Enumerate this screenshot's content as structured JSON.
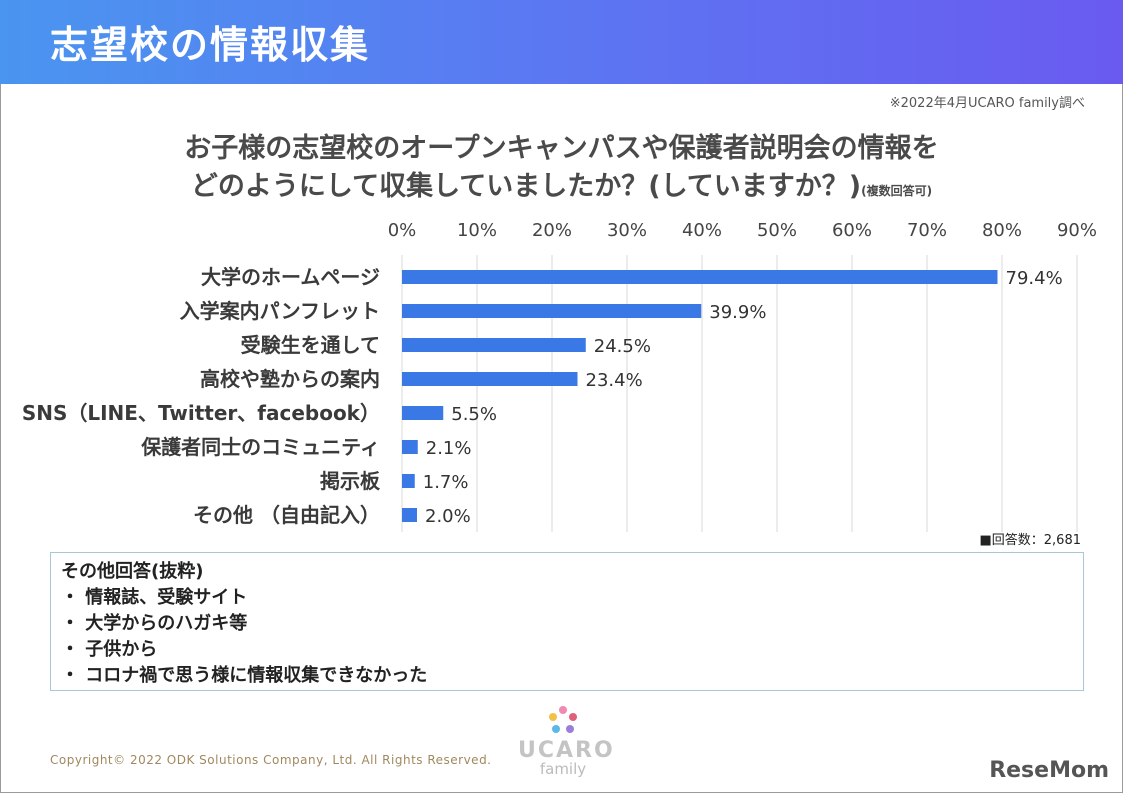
{
  "header": {
    "title": "志望校の情報収集"
  },
  "source_note": "※2022年4月UCARO family調べ",
  "question": {
    "line1": "お子様の志望校のオープンキャンパスや保護者説明会の情報を",
    "line2": "どのようにして収集していましたか？(していますか？)",
    "note": "(複数回答可)"
  },
  "chart_data": {
    "type": "bar",
    "orientation": "horizontal",
    "categories": [
      "大学のホームページ",
      "入学案内パンフレット",
      "受験生を通して",
      "高校や塾からの案内",
      "SNS（LINE、Twitter、facebook）",
      "保護者同士のコミュニティ",
      "掲示板",
      "その他 （自由記入）"
    ],
    "values": [
      79.4,
      39.9,
      24.5,
      23.4,
      5.5,
      2.1,
      1.7,
      2.0
    ],
    "value_labels": [
      "79.4%",
      "39.9%",
      "24.5%",
      "23.4%",
      "5.5%",
      "2.1%",
      "1.7%",
      "2.0%"
    ],
    "x_ticks": [
      "0%",
      "10%",
      "20%",
      "30%",
      "40%",
      "50%",
      "60%",
      "70%",
      "80%",
      "90%"
    ],
    "xlim": [
      0,
      90
    ],
    "unit": "%",
    "bar_color": "#3a78e6",
    "grid": true
  },
  "respondents": "■回答数：2,681",
  "other_answers": {
    "title": "その他回答(抜粋)",
    "items": [
      "・ 情報誌、受験サイト",
      "・ 大学からのハガキ等",
      "・ 子供から",
      "・ コロナ禍で思う様に情報収集できなかった"
    ]
  },
  "logo": {
    "name": "UCARO",
    "sub": "family"
  },
  "copyright": "Copyright© 2022 ODK Solutions Company, Ltd. All Rights Reserved.",
  "publisher": "ReseMom",
  "colors": {
    "header_start": "#4a95f0",
    "header_end": "#6a5af0",
    "bar": "#3a78e6",
    "grid": "#d9d9d9"
  }
}
